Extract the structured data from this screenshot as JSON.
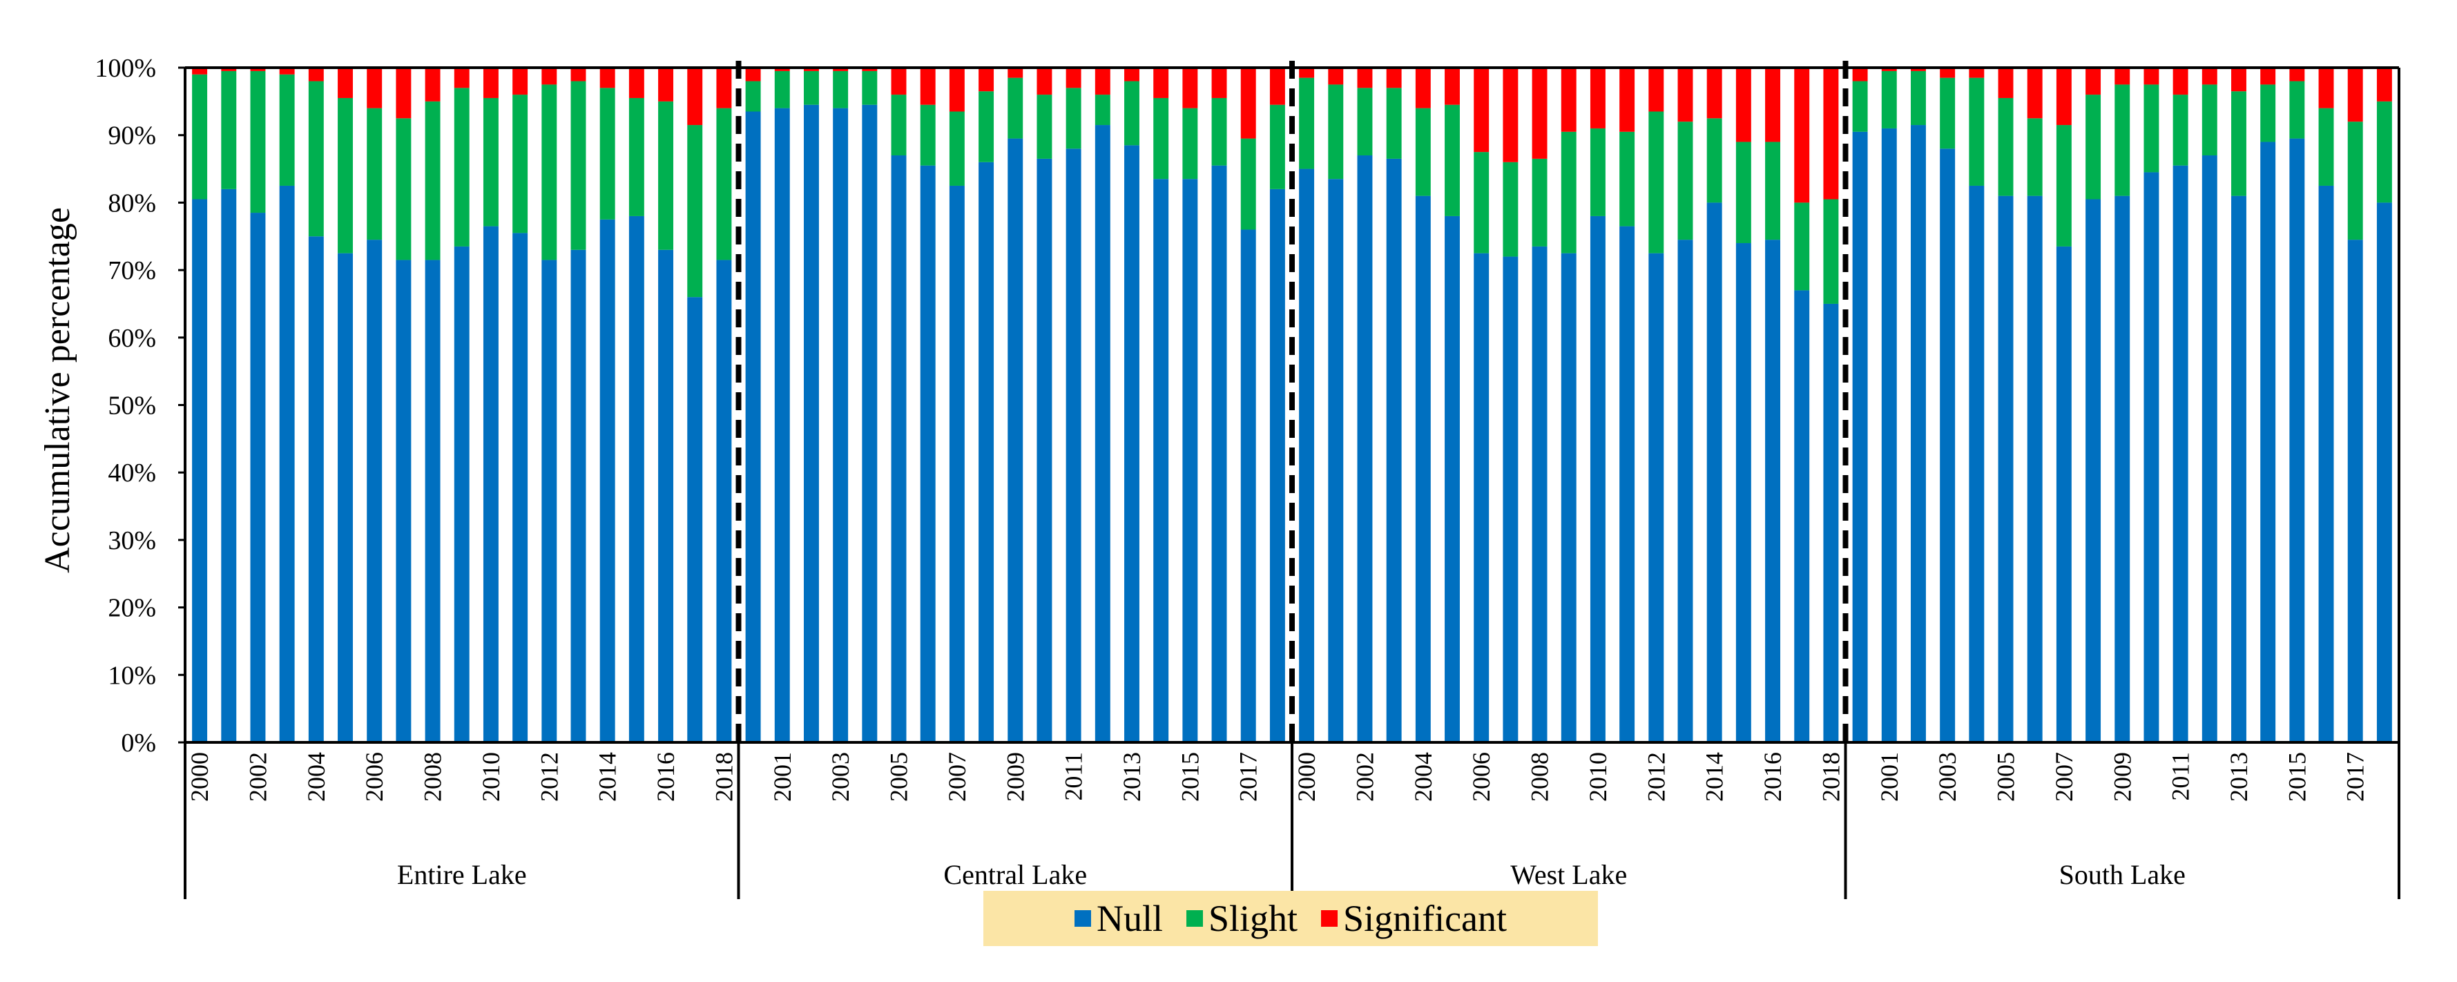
{
  "chart_data": {
    "type": "bar",
    "stacked": true,
    "ylabel": "Accumulative percentage",
    "ylim": [
      0,
      100
    ],
    "yticks": [
      "0%",
      "10%",
      "20%",
      "30%",
      "40%",
      "50%",
      "60%",
      "70%",
      "80%",
      "90%",
      "100%"
    ],
    "years": [
      "2000",
      "2001",
      "2002",
      "2003",
      "2004",
      "2005",
      "2006",
      "2007",
      "2008",
      "2009",
      "2010",
      "2011",
      "2012",
      "2013",
      "2014",
      "2015",
      "2016",
      "2017",
      "2018"
    ],
    "colors": {
      "Null": "#0070c0",
      "Slight": "#00b050",
      "Significant": "#ff0000"
    },
    "legend": [
      "Null",
      "Slight",
      "Significant"
    ],
    "groups": [
      {
        "name": "Entire Lake",
        "null": [
          80.5,
          82,
          78.5,
          82.5,
          75,
          72.5,
          74.5,
          71.5,
          71.5,
          73.5,
          76.5,
          75.5,
          71.5,
          73,
          77.5,
          78,
          73,
          66,
          71.5
        ],
        "slight": [
          18.5,
          17.5,
          21,
          16.5,
          23,
          23,
          19.5,
          21,
          23.5,
          23.5,
          19,
          20.5,
          26,
          25,
          19.5,
          17.5,
          22,
          25.5,
          22.5
        ]
      },
      {
        "name": "Central Lake",
        "null": [
          93.5,
          94,
          94.5,
          94,
          94.5,
          87,
          85.5,
          82.5,
          86,
          89.5,
          86.5,
          88,
          91.5,
          88.5,
          83.5,
          83.5,
          85.5,
          76,
          82
        ],
        "slight": [
          4.5,
          5.5,
          5,
          5.5,
          5,
          9,
          9,
          11,
          10.5,
          9,
          9.5,
          9,
          4.5,
          9.5,
          12,
          10.5,
          10,
          13.5,
          12.5
        ]
      },
      {
        "name": "West Lake",
        "null": [
          85,
          83.5,
          87,
          86.5,
          81,
          78,
          72.5,
          72,
          73.5,
          72.5,
          78,
          76.5,
          72.5,
          74.5,
          80,
          74,
          74.5,
          67,
          65
        ],
        "slight": [
          13.5,
          14,
          10,
          10.5,
          13,
          16.5,
          15,
          14,
          13,
          18,
          13,
          14,
          21,
          17.5,
          12.5,
          15,
          14.5,
          13,
          15.5
        ]
      },
      {
        "name": "South Lake",
        "null": [
          90.5,
          91,
          91.5,
          88,
          82.5,
          81,
          81,
          73.5,
          80.5,
          81,
          84.5,
          85.5,
          87,
          81,
          89,
          89.5,
          82.5,
          74.5,
          80
        ],
        "slight": [
          7.5,
          8.5,
          8,
          10.5,
          16,
          14.5,
          11.5,
          18,
          15.5,
          16.5,
          13,
          10.5,
          10.5,
          15.5,
          8.5,
          8.5,
          11.5,
          17.5,
          15
        ]
      }
    ]
  }
}
